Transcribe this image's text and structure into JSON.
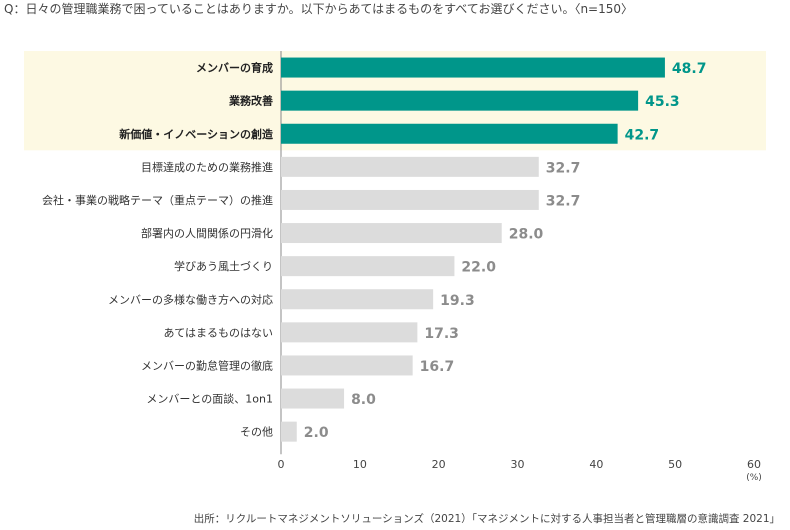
{
  "question": "Q：日々の管理職業務で困っていることはありますか。以下からあてはまるものをすべてお選びください。〈n=150〉",
  "source": "出所：リクルートマネジメントソリューションズ（2021）「マネジメントに対する人事担当者と管理職層の意識調査 2021」",
  "colors": {
    "highlight_bar": "#00968a",
    "highlight_value": "#00968a",
    "highlight_band": "#fdf9e3",
    "normal_bar": "#dcdcdc",
    "normal_value": "#8c8c8c"
  },
  "chart_data": {
    "type": "bar",
    "orientation": "horizontal",
    "categories": [
      "メンバーの育成",
      "業務改善",
      "新価値・イノベーションの創造",
      "目標達成のための業務推進",
      "会社・事業の戦略テーマ（重点テーマ）の推進",
      "部署内の人間関係の円滑化",
      "学びあう風土づくり",
      "メンバーの多様な働き方への対応",
      "あてはまるものはない",
      "メンバーの勤怠管理の徹底",
      "メンバーとの面談、1on1",
      "その他"
    ],
    "values": [
      48.7,
      45.3,
      42.7,
      32.7,
      32.7,
      28.0,
      22.0,
      19.3,
      17.3,
      16.7,
      8.0,
      2.0
    ],
    "value_labels": [
      "48.7",
      "45.3",
      "42.7",
      "32.7",
      "32.7",
      "28.0",
      "22.0",
      "19.3",
      "17.3",
      "16.7",
      "8.0",
      "2.0"
    ],
    "highlighted_count": 3,
    "xlim": [
      0,
      60
    ],
    "xticks": [
      "0",
      "10",
      "20",
      "30",
      "40",
      "50",
      "60"
    ],
    "xunit": "(%)",
    "grid": false
  }
}
